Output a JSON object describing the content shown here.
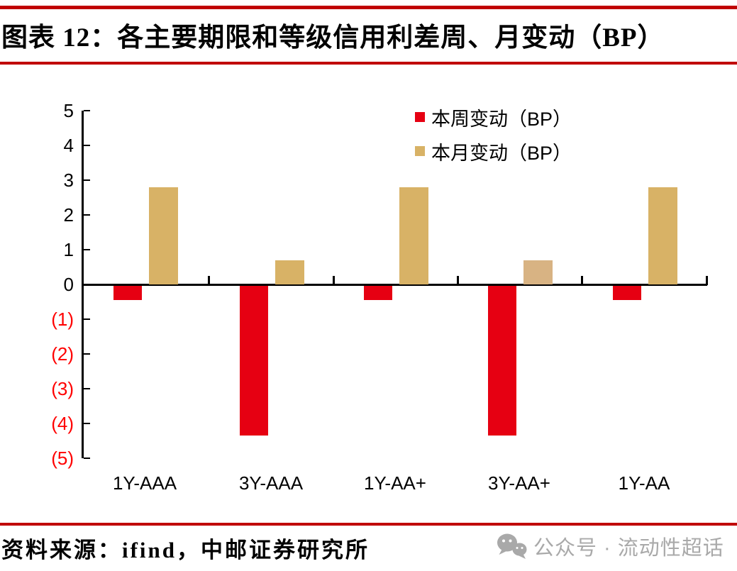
{
  "header": {
    "title": "图表 12：各主要期限和等级信用利差周、月变动（BP）"
  },
  "chart_data": {
    "type": "bar",
    "title": "各主要期限和等级信用利差周、月变动（BP）",
    "categories": [
      "1Y-AAA",
      "3Y-AAA",
      "1Y-AA+",
      "3Y-AA+",
      "1Y-AA"
    ],
    "series": [
      {
        "name": "本周变动（BP）",
        "color": "#e60012",
        "values": [
          -0.4,
          -4.3,
          -0.4,
          -4.3,
          -0.4
        ]
      },
      {
        "name": "本月变动（BP）",
        "color": "#d8b266",
        "bar_colors": [
          "#d8b266",
          "#d8b266",
          "#d8b266",
          "#d8b383",
          "#d8b266"
        ],
        "values": [
          2.8,
          0.7,
          2.8,
          0.7,
          2.8
        ]
      }
    ],
    "xlabel": "",
    "ylabel": "",
    "ylim": [
      -5,
      5
    ],
    "ytick_step": 1,
    "ytick_labels": [
      "5",
      "4",
      "3",
      "2",
      "1",
      "0",
      "(1)",
      "(2)",
      "(3)",
      "(4)",
      "(5)"
    ],
    "negative_tick_color": "#ff0000",
    "positive_tick_color": "#000000",
    "grid": false,
    "legend_position": "top-right"
  },
  "footer": {
    "source": "资料来源：ifind，中邮证券研究所",
    "wechat_label": "公众号 · 流动性超话",
    "wechat_icon": "wechat-logo",
    "accent_rule_color": "#c00000"
  }
}
